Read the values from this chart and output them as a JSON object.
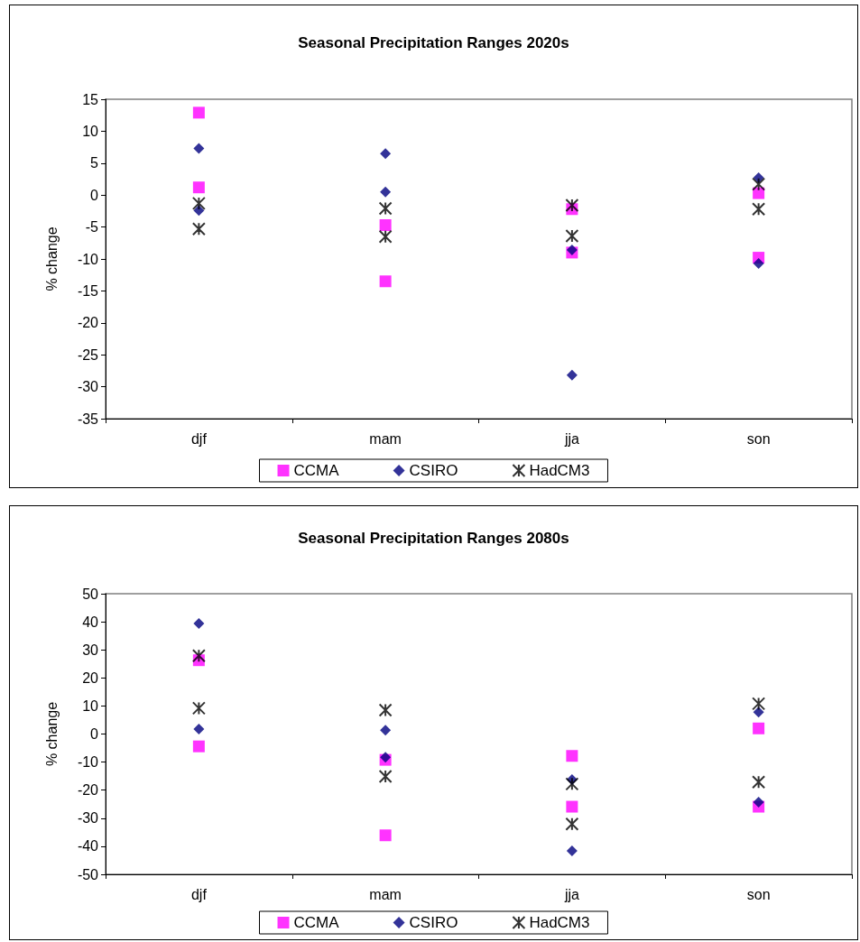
{
  "chart_data": [
    {
      "type": "scatter",
      "title": "Seasonal Precipitation Ranges 2020s",
      "ylabel": "% change",
      "categories": [
        "djf",
        "mam",
        "jja",
        "son"
      ],
      "ylim": [
        -35,
        15
      ],
      "yticks": [
        -35,
        -30,
        -25,
        -20,
        -15,
        -10,
        -5,
        0,
        5,
        10,
        15
      ],
      "grid": false,
      "legend": "bottom",
      "series": [
        {
          "name": "CCMA",
          "color": "#ff00ff",
          "marker": "square",
          "x": [
            "djf",
            "djf",
            "mam",
            "mam",
            "jja",
            "jja",
            "son",
            "son"
          ],
          "values": [
            12.9,
            1.2,
            -4.7,
            -13.5,
            -2.2,
            -9,
            0.3,
            -9.8
          ]
        },
        {
          "name": "CSIRO",
          "color": "#000080",
          "marker": "diamond",
          "x": [
            "djf",
            "djf",
            "mam",
            "mam",
            "jja",
            "jja",
            "son",
            "son"
          ],
          "values": [
            7.3,
            -2.4,
            6.5,
            0.5,
            -8.6,
            -28.2,
            2.7,
            -10.7
          ]
        },
        {
          "name": "HadCM3",
          "color": "#000000",
          "marker": "cross",
          "x": [
            "djf",
            "djf",
            "mam",
            "mam",
            "jja",
            "jja",
            "son",
            "son"
          ],
          "values": [
            -1.3,
            -5.3,
            -2.1,
            -6.5,
            -1.6,
            -6.4,
            1.7,
            -2.2
          ]
        }
      ]
    },
    {
      "type": "scatter",
      "title": "Seasonal Precipitation Ranges 2080s",
      "ylabel": "% change",
      "categories": [
        "djf",
        "mam",
        "jja",
        "son"
      ],
      "ylim": [
        -50,
        50
      ],
      "yticks": [
        -50,
        -40,
        -30,
        -20,
        -10,
        0,
        10,
        20,
        30,
        40,
        50
      ],
      "grid": false,
      "legend": "bottom",
      "series": [
        {
          "name": "CCMA",
          "color": "#ff00ff",
          "marker": "square",
          "x": [
            "djf",
            "djf",
            "mam",
            "mam",
            "jja",
            "jja",
            "son",
            "son"
          ],
          "values": [
            26.3,
            -4.4,
            -9.2,
            -36.1,
            -7.8,
            -25.9,
            2,
            -25.9
          ]
        },
        {
          "name": "CSIRO",
          "color": "#000080",
          "marker": "diamond",
          "x": [
            "djf",
            "djf",
            "mam",
            "mam",
            "jja",
            "jja",
            "son",
            "son"
          ],
          "values": [
            39.4,
            1.8,
            1.4,
            -8.3,
            -16.2,
            -41.6,
            7.8,
            -24.3
          ]
        },
        {
          "name": "HadCM3",
          "color": "#000000",
          "marker": "cross",
          "x": [
            "djf",
            "djf",
            "mam",
            "mam",
            "jja",
            "jja",
            "son",
            "son"
          ],
          "values": [
            27.9,
            9.2,
            8.5,
            -15.1,
            -17.8,
            -32.1,
            10.8,
            -17.1
          ]
        }
      ]
    }
  ]
}
